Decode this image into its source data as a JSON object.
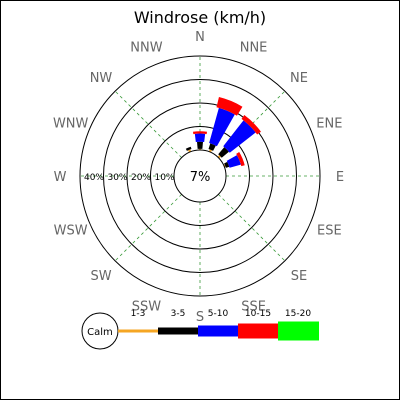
{
  "chart_data": {
    "type": "windrose",
    "title": "Windrose (km/h)",
    "directions": [
      "N",
      "NNE",
      "NE",
      "ENE",
      "E",
      "ESE",
      "SE",
      "SSE",
      "S",
      "SSW",
      "SW",
      "WSW",
      "W",
      "WNW",
      "NW",
      "NNW"
    ],
    "ring_labels": [
      "10%",
      "20%",
      "30%",
      "40%"
    ],
    "calm_label": "7%",
    "speed_bins": [
      {
        "label": "1-3",
        "color": "#f5a623"
      },
      {
        "label": "3-5",
        "color": "#000000"
      },
      {
        "label": "5-10",
        "color": "#0000ff"
      },
      {
        "label": "10-15",
        "color": "#ff0000"
      },
      {
        "label": "15-20",
        "color": "#00ff00"
      }
    ],
    "legend_calm_label": "Calm",
    "series": [
      {
        "direction": "N",
        "values": [
          0.5,
          3.0,
          3.5,
          1.0,
          0
        ]
      },
      {
        "direction": "NNE",
        "values": [
          1.0,
          2.5,
          15.5,
          4.5,
          0
        ]
      },
      {
        "direction": "NE",
        "values": [
          1.0,
          4.0,
          14.0,
          2.0,
          0
        ]
      },
      {
        "direction": "ENE",
        "values": [
          0.5,
          1.5,
          5.0,
          1.5,
          0
        ]
      },
      {
        "direction": "NNW",
        "values": [
          1.0,
          1.0,
          0.0,
          0.0,
          0
        ]
      }
    ],
    "rmax_percent": 40
  }
}
